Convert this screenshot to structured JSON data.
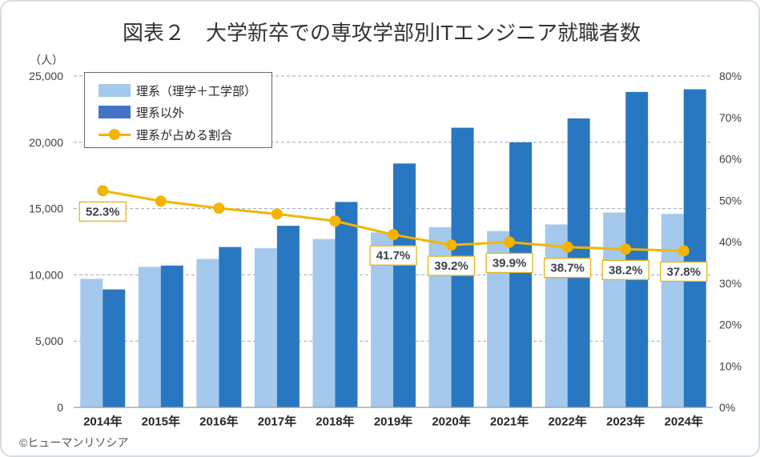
{
  "chart_data": {
    "type": "bar",
    "title": "図表２　大学新卒での専攻学部別ITエンジニア就職者数",
    "categories": [
      "2014年",
      "2015年",
      "2016年",
      "2017年",
      "2018年",
      "2019年",
      "2020年",
      "2021年",
      "2022年",
      "2023年",
      "2024年"
    ],
    "series": [
      {
        "name": "理系（理学＋工学部）",
        "type": "bar",
        "axis": "left",
        "color": "#a5c9ec",
        "values": [
          9700,
          10600,
          11200,
          12000,
          12700,
          13200,
          13600,
          13300,
          13800,
          14700,
          14600
        ]
      },
      {
        "name": "理系以外",
        "type": "bar",
        "axis": "left",
        "color": "#2a77c1",
        "legend_color": "#4472c4",
        "values": [
          8900,
          10700,
          12100,
          13700,
          15500,
          18400,
          21100,
          20000,
          21800,
          23800,
          24000
        ]
      },
      {
        "name": "理系が占める割合",
        "type": "line",
        "axis": "right",
        "color": "#f4b400",
        "label_border_color": "#e7b416",
        "values": [
          52.3,
          49.8,
          48.1,
          46.7,
          45.0,
          41.7,
          39.2,
          39.9,
          38.7,
          38.2,
          37.8
        ],
        "point_labels": [
          "52.3%",
          "",
          "",
          "",
          "",
          "41.7%",
          "39.2%",
          "39.9%",
          "38.7%",
          "38.2%",
          "37.8%"
        ]
      }
    ],
    "y_left": {
      "unit_label": "（人）",
      "range": [
        0,
        25000
      ],
      "ticks": [
        0,
        5000,
        10000,
        15000,
        20000,
        25000
      ],
      "tick_labels": [
        "0",
        "5,000",
        "10,000",
        "15,000",
        "20,000",
        "25,000"
      ]
    },
    "y_right": {
      "range": [
        0,
        80
      ],
      "ticks": [
        0,
        10,
        20,
        30,
        40,
        50,
        60,
        70,
        80
      ],
      "tick_labels": [
        "0%",
        "10%",
        "20%",
        "30%",
        "40%",
        "50%",
        "60%",
        "70%",
        "80%"
      ]
    },
    "grid": true,
    "legend_position": "top-left"
  },
  "credit": "©ヒューマンリソシア"
}
